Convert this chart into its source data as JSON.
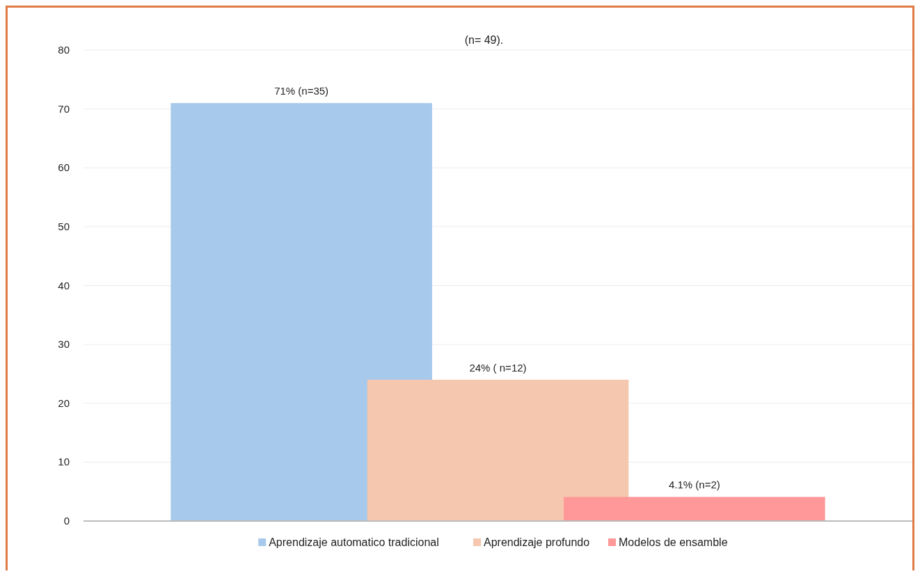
{
  "chart_data": {
    "type": "bar",
    "title": "(n= 49).",
    "categories": [
      null
    ],
    "series": [
      {
        "name": "Aprendizaje automatico tradicional",
        "color": "#a7c9eb",
        "values": [
          71
        ],
        "value_labels": [
          "71% (n=35)"
        ]
      },
      {
        "name": "Aprendizaje profundo",
        "color": "#f5c7ae",
        "values": [
          24
        ],
        "value_labels": [
          "24% ( n=12)"
        ]
      },
      {
        "name": "Modelos de ensamble",
        "color": "#ff9999",
        "values": [
          4.1
        ],
        "value_labels": [
          "4.1% (n=2)"
        ]
      }
    ],
    "ylim": [
      0,
      80
    ],
    "yticks": [
      0,
      10,
      20,
      30,
      40,
      50,
      60,
      70,
      80
    ],
    "grid": "y",
    "legend": "bottom"
  }
}
